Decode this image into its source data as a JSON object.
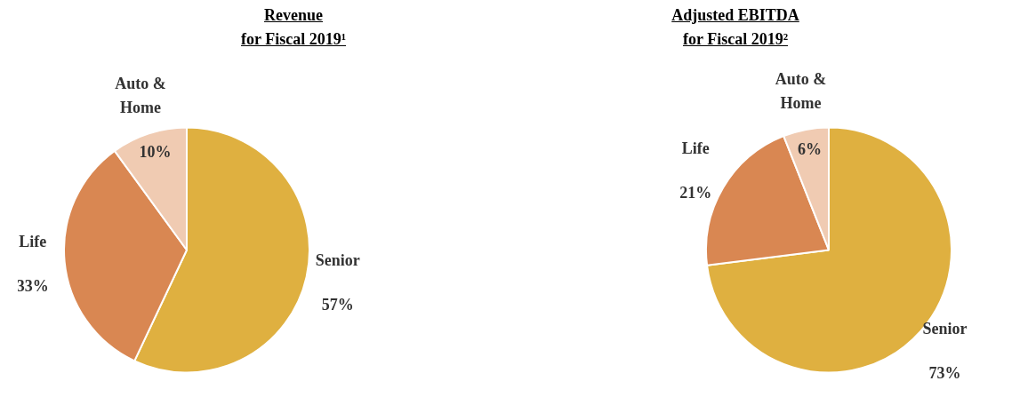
{
  "chart_data": [
    {
      "type": "pie",
      "title": "Revenue",
      "subtitle": "for Fiscal 2019¹",
      "categories": [
        "Senior",
        "Life",
        "Auto & Home"
      ],
      "values": [
        57,
        33,
        10
      ],
      "value_labels": [
        "57%",
        "33%",
        "10%"
      ],
      "colors": [
        "#dfb040",
        "#d98752",
        "#f0cbb2"
      ],
      "legend": false
    },
    {
      "type": "pie",
      "title": "Adjusted EBITDA",
      "subtitle": "for Fiscal 2019²",
      "categories": [
        "Senior",
        "Life",
        "Auto & Home"
      ],
      "values": [
        73,
        21,
        6
      ],
      "value_labels": [
        "73%",
        "21%",
        "6%"
      ],
      "colors": [
        "#dfb040",
        "#d98752",
        "#f0cbb2"
      ],
      "legend": false
    }
  ]
}
